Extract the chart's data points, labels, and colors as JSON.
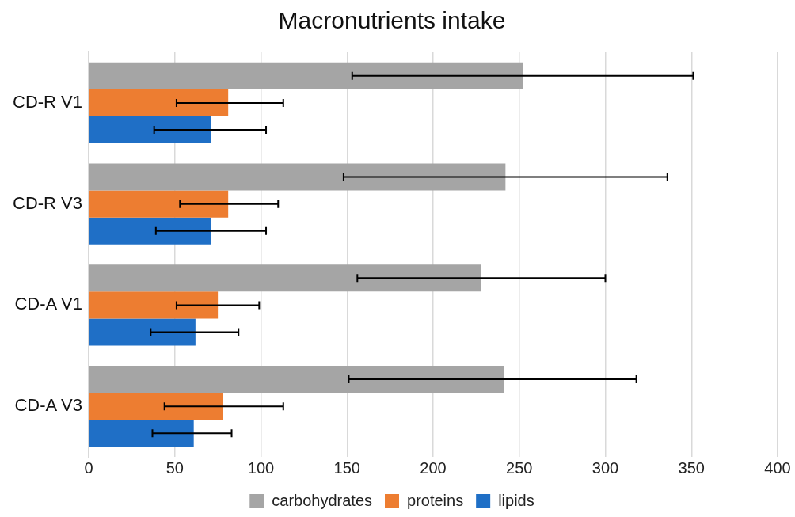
{
  "chart_data": {
    "type": "bar",
    "orientation": "horizontal",
    "title": "Macronutrients intake",
    "categories": [
      "CD-R V1",
      "CD-R V3",
      "CD-A V1",
      "CD-A V3"
    ],
    "series": [
      {
        "name": "carbohydrates",
        "color": "#a5a5a5",
        "values": [
          252,
          242,
          228,
          241
        ],
        "errors": [
          [
            153,
            351
          ],
          [
            148,
            336
          ],
          [
            156,
            300
          ],
          [
            151,
            318
          ]
        ]
      },
      {
        "name": "proteins",
        "color": "#ed7d31",
        "values": [
          81,
          81,
          75,
          78
        ],
        "errors": [
          [
            51,
            113
          ],
          [
            53,
            110
          ],
          [
            51,
            99
          ],
          [
            44,
            113
          ]
        ]
      },
      {
        "name": "lipids",
        "color": "#1f6fc6",
        "values": [
          71,
          71,
          62,
          61
        ],
        "errors": [
          [
            38,
            103
          ],
          [
            39,
            103
          ],
          [
            36,
            87
          ],
          [
            37,
            83
          ]
        ]
      }
    ],
    "xlim": [
      0,
      400
    ],
    "xticks": [
      0,
      50,
      100,
      150,
      200,
      250,
      300,
      350,
      400
    ],
    "grid": "x",
    "legend": "bottom"
  }
}
